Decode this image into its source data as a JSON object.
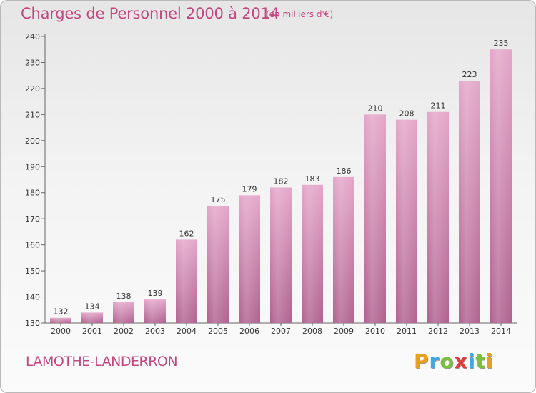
{
  "header": {
    "title": "Charges de Personnel 2000 à 2014",
    "subtitle": "(en milliers d'€)"
  },
  "footer": {
    "commune": "LAMOTHE-LANDERRON",
    "brand_letters": [
      {
        "char": "P",
        "color": "#e8a020"
      },
      {
        "char": "r",
        "color": "#3fa9e0"
      },
      {
        "char": "o",
        "color": "#7cbf3a"
      },
      {
        "char": "x",
        "color": "#e23a3a"
      },
      {
        "char": "i",
        "color": "#3fa9e0"
      },
      {
        "char": "t",
        "color": "#7cbf3a"
      },
      {
        "char": "i",
        "color": "#e8a020"
      }
    ]
  },
  "chart_data": {
    "type": "bar",
    "title": "Charges de Personnel 2000 à 2014",
    "subtitle": "(en milliers d'€)",
    "xlabel": "",
    "ylabel": "",
    "categories": [
      "2000",
      "2001",
      "2002",
      "2003",
      "2004",
      "2005",
      "2006",
      "2007",
      "2008",
      "2009",
      "2010",
      "2011",
      "2012",
      "2013",
      "2014"
    ],
    "values": [
      132,
      134,
      138,
      139,
      162,
      175,
      179,
      182,
      183,
      186,
      210,
      208,
      211,
      223,
      235
    ],
    "ylim": [
      130,
      240
    ],
    "yticks": [
      130,
      140,
      150,
      160,
      170,
      180,
      190,
      200,
      210,
      220,
      230,
      240
    ],
    "grid": false,
    "bar_color": "#d98bb6",
    "bar_color_dark": "#b0628f"
  }
}
